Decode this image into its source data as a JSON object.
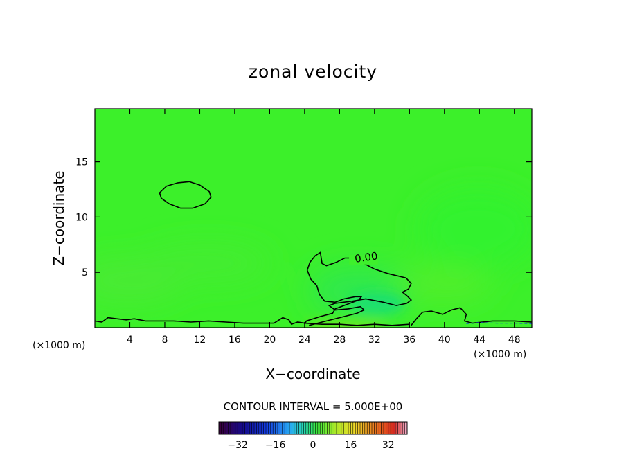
{
  "chart_data": {
    "type": "contour",
    "title": "zonal velocity",
    "xlabel": "X−coordinate",
    "ylabel": "Z−coordinate",
    "x_unit_label": "(×1000 m)",
    "y_unit_label": "(×1000 m)",
    "xlim": [
      0,
      50
    ],
    "ylim": [
      0,
      19.8
    ],
    "x_ticks": [
      4,
      8,
      12,
      16,
      20,
      24,
      28,
      32,
      36,
      40,
      44,
      48
    ],
    "x_tick_labels": [
      "4",
      "8",
      "12",
      "16",
      "20",
      "24",
      "28",
      "32",
      "36",
      "40",
      "44",
      "48"
    ],
    "y_ticks": [
      5,
      10,
      15
    ],
    "y_tick_labels": [
      "5",
      "10",
      "15"
    ],
    "contour_interval_label": "CONTOUR INTERVAL = 5.000E+00",
    "contour_label": "0.00",
    "contour_levels": [
      0
    ],
    "colorbar": {
      "range": [
        -40,
        40
      ],
      "ticks": [
        -32,
        -16,
        0,
        16,
        32
      ],
      "tick_labels": [
        "−32",
        "−16",
        "0",
        "16",
        "32"
      ]
    },
    "zero_contours": [
      {
        "name": "upper-closed-loop",
        "closed": true,
        "points": [
          [
            7.4,
            12.2
          ],
          [
            8.2,
            12.8
          ],
          [
            9.5,
            13.1
          ],
          [
            10.8,
            13.2
          ],
          [
            12.0,
            12.9
          ],
          [
            13.1,
            12.3
          ],
          [
            13.3,
            11.8
          ],
          [
            12.6,
            11.2
          ],
          [
            11.2,
            10.8
          ],
          [
            9.8,
            10.8
          ],
          [
            8.5,
            11.2
          ],
          [
            7.6,
            11.7
          ]
        ]
      },
      {
        "name": "central-lobe",
        "closed": false,
        "points": [
          [
            24.5,
            0.2
          ],
          [
            26,
            0.5
          ],
          [
            28,
            0.9
          ],
          [
            30,
            1.3
          ],
          [
            30.8,
            1.6
          ],
          [
            30.4,
            1.9
          ],
          [
            29,
            1.7
          ],
          [
            27.5,
            1.6
          ],
          [
            26.8,
            2.0
          ],
          [
            27.5,
            2.2
          ],
          [
            29.5,
            2.4
          ],
          [
            31,
            2.6
          ],
          [
            33,
            2.3
          ],
          [
            34.5,
            2.0
          ],
          [
            35.7,
            2.2
          ],
          [
            36.2,
            2.5
          ],
          [
            35.7,
            2.9
          ],
          [
            35.2,
            3.2
          ],
          [
            35.9,
            3.5
          ],
          [
            36.2,
            4.0
          ],
          [
            35.6,
            4.5
          ],
          [
            33.5,
            4.9
          ],
          [
            32,
            5.3
          ],
          [
            30.8,
            5.8
          ],
          [
            29.8,
            6.3
          ],
          [
            28.6,
            6.3
          ],
          [
            27.6,
            5.9
          ],
          [
            26.5,
            5.6
          ],
          [
            26.0,
            5.8
          ],
          [
            25.8,
            6.8
          ],
          [
            25.2,
            6.5
          ],
          [
            24.6,
            5.9
          ],
          [
            24.3,
            5.2
          ],
          [
            24.7,
            4.4
          ],
          [
            25.4,
            3.8
          ],
          [
            25.7,
            3.0
          ],
          [
            26.3,
            2.4
          ],
          [
            27.5,
            2.3
          ],
          [
            28.5,
            2.6
          ],
          [
            29.8,
            2.8
          ],
          [
            30.5,
            2.8
          ],
          [
            30.2,
            2.5
          ],
          [
            28.5,
            2.0
          ],
          [
            27.5,
            1.7
          ],
          [
            27.2,
            1.3
          ],
          [
            25.8,
            1.0
          ],
          [
            24.2,
            0.6
          ],
          [
            24.0,
            0.3
          ]
        ]
      },
      {
        "name": "right-branch",
        "closed": false,
        "points": [
          [
            36.2,
            0.2
          ],
          [
            36.8,
            0.8
          ],
          [
            37.5,
            1.4
          ],
          [
            38.5,
            1.5
          ],
          [
            39.8,
            1.2
          ],
          [
            40.8,
            1.6
          ],
          [
            41.8,
            1.8
          ],
          [
            42.5,
            1.2
          ],
          [
            42.3,
            0.6
          ],
          [
            43.2,
            0.4
          ],
          [
            45.5,
            0.6
          ],
          [
            48,
            0.6
          ],
          [
            50,
            0.5
          ]
        ]
      },
      {
        "name": "bottom-trace",
        "closed": false,
        "points": [
          [
            0,
            0.6
          ],
          [
            0.8,
            0.5
          ],
          [
            1.5,
            0.9
          ],
          [
            2.5,
            0.8
          ],
          [
            3.6,
            0.7
          ],
          [
            4.5,
            0.8
          ],
          [
            5.8,
            0.6
          ],
          [
            7,
            0.6
          ],
          [
            9,
            0.6
          ],
          [
            11,
            0.5
          ],
          [
            13,
            0.6
          ],
          [
            15,
            0.5
          ],
          [
            17,
            0.4
          ],
          [
            19,
            0.4
          ],
          [
            20.5,
            0.4
          ],
          [
            21.5,
            0.9
          ],
          [
            22.2,
            0.7
          ],
          [
            22.5,
            0.3
          ],
          [
            23.2,
            0.5
          ],
          [
            24,
            0.4
          ],
          [
            26,
            0.3
          ],
          [
            28,
            0.3
          ],
          [
            30,
            0.2
          ],
          [
            32,
            0.3
          ],
          [
            34,
            0.2
          ],
          [
            36,
            0.3
          ]
        ]
      }
    ],
    "dashed_contours": [
      {
        "name": "negative-right",
        "points": [
          [
            42.5,
            0.35
          ],
          [
            44,
            0.45
          ],
          [
            46,
            0.4
          ],
          [
            48,
            0.4
          ],
          [
            50,
            0.35
          ]
        ]
      }
    ]
  }
}
